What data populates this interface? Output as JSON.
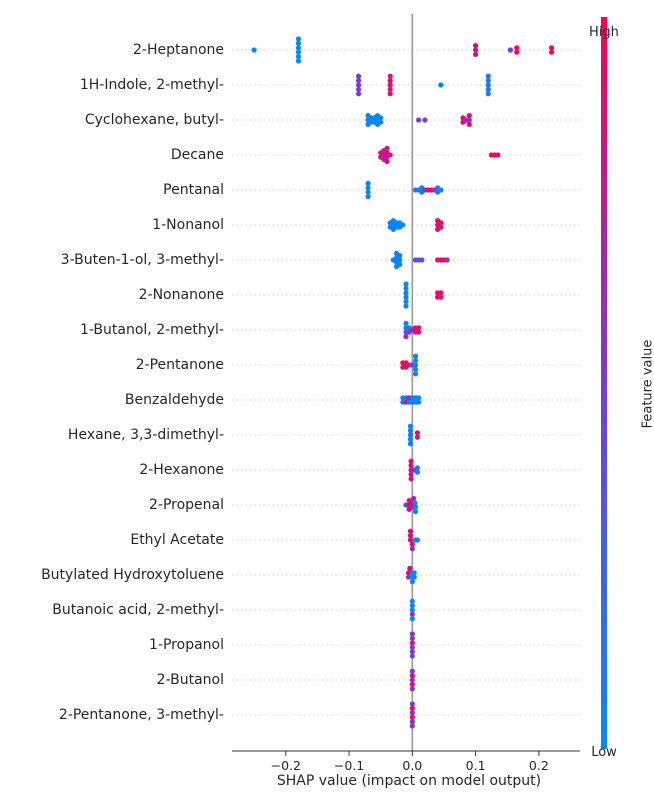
{
  "chart_data": {
    "type": "scatter",
    "subtype": "shap-beeswarm",
    "xlabel": "SHAP value (impact on model output)",
    "xlim": [
      -0.285,
      0.265
    ],
    "xticks": [
      -0.2,
      -0.1,
      0.0,
      0.1,
      0.2
    ],
    "xtick_labels": [
      "−0.2",
      "−0.1",
      "0.0",
      "0.1",
      "0.2"
    ],
    "zero_line": true,
    "grid": "dotted horizontal per feature",
    "colorbar": {
      "label": "Feature value",
      "high_label": "High",
      "low_label": "Low",
      "low_color": "#008bfb",
      "mid_color": "#7a3ad6",
      "high_color": "#ff0052"
    },
    "features": [
      {
        "name": "2-Heptanone",
        "points": [
          [
            -0.25,
            0.0
          ],
          [
            -0.18,
            0.0
          ],
          [
            -0.18,
            0.0
          ],
          [
            -0.18,
            0.0
          ],
          [
            -0.18,
            0.0
          ],
          [
            -0.18,
            0.0
          ],
          [
            -0.18,
            0.0
          ],
          [
            0.1,
            0.9
          ],
          [
            0.1,
            0.85
          ],
          [
            0.1,
            0.9
          ],
          [
            0.155,
            0.5
          ],
          [
            0.165,
            1.0
          ],
          [
            0.165,
            0.95
          ],
          [
            0.22,
            1.0
          ],
          [
            0.22,
            1.0
          ]
        ]
      },
      {
        "name": "1H-Indole, 2-methyl-",
        "points": [
          [
            -0.085,
            0.5
          ],
          [
            -0.085,
            0.5
          ],
          [
            -0.085,
            0.5
          ],
          [
            -0.085,
            0.5
          ],
          [
            -0.085,
            0.5
          ],
          [
            -0.035,
            0.9
          ],
          [
            -0.035,
            0.9
          ],
          [
            -0.035,
            0.9
          ],
          [
            -0.035,
            0.9
          ],
          [
            -0.035,
            0.9
          ],
          [
            0.045,
            0.05
          ],
          [
            0.12,
            0.1
          ],
          [
            0.12,
            0.1
          ],
          [
            0.12,
            0.1
          ],
          [
            0.12,
            0.1
          ],
          [
            0.12,
            0.1
          ]
        ]
      },
      {
        "name": "Cyclohexane, butyl-",
        "points": [
          [
            -0.07,
            0.05
          ],
          [
            -0.07,
            0.05
          ],
          [
            -0.07,
            0.05
          ],
          [
            -0.065,
            0.05
          ],
          [
            -0.065,
            0.05
          ],
          [
            -0.06,
            0.05
          ],
          [
            -0.06,
            0.05
          ],
          [
            -0.055,
            0.05
          ],
          [
            -0.055,
            0.05
          ],
          [
            -0.055,
            0.05
          ],
          [
            -0.05,
            0.05
          ],
          [
            -0.05,
            0.05
          ],
          [
            0.01,
            0.5
          ],
          [
            0.02,
            0.45
          ],
          [
            0.08,
            0.95
          ],
          [
            0.08,
            0.95
          ],
          [
            0.085,
            0.5
          ],
          [
            0.09,
            0.95
          ],
          [
            0.09,
            0.6
          ],
          [
            0.09,
            0.95
          ]
        ]
      },
      {
        "name": "Decane",
        "points": [
          [
            -0.05,
            0.8
          ],
          [
            -0.05,
            0.75
          ],
          [
            -0.045,
            0.8
          ],
          [
            -0.045,
            0.85
          ],
          [
            -0.045,
            0.7
          ],
          [
            -0.04,
            0.8
          ],
          [
            -0.04,
            0.85
          ],
          [
            -0.04,
            0.75
          ],
          [
            -0.04,
            0.8
          ],
          [
            -0.035,
            0.75
          ],
          [
            0.125,
            1.0
          ],
          [
            0.13,
            1.0
          ],
          [
            0.135,
            0.95
          ]
        ]
      },
      {
        "name": "Pentanal",
        "points": [
          [
            -0.07,
            0.05
          ],
          [
            -0.07,
            0.05
          ],
          [
            -0.07,
            0.05
          ],
          [
            -0.07,
            0.05
          ],
          [
            0.005,
            0.1
          ],
          [
            0.01,
            0.1
          ],
          [
            0.015,
            0.1
          ],
          [
            0.015,
            0.1
          ],
          [
            0.02,
            0.5
          ],
          [
            0.025,
            1.0
          ],
          [
            0.03,
            0.9
          ],
          [
            0.035,
            0.6
          ],
          [
            0.04,
            0.1
          ],
          [
            0.04,
            0.1
          ],
          [
            0.045,
            0.1
          ]
        ]
      },
      {
        "name": "1-Nonanol",
        "points": [
          [
            -0.035,
            0.05
          ],
          [
            -0.035,
            0.05
          ],
          [
            -0.03,
            0.05
          ],
          [
            -0.03,
            0.05
          ],
          [
            -0.03,
            0.05
          ],
          [
            -0.025,
            0.05
          ],
          [
            -0.025,
            0.05
          ],
          [
            -0.02,
            0.05
          ],
          [
            -0.02,
            0.05
          ],
          [
            -0.015,
            0.05
          ],
          [
            0.04,
            0.9
          ],
          [
            0.04,
            0.95
          ],
          [
            0.04,
            0.9
          ],
          [
            0.045,
            0.95
          ],
          [
            0.045,
            0.85
          ]
        ]
      },
      {
        "name": "3-Buten-1-ol, 3-methyl-",
        "points": [
          [
            -0.03,
            0.05
          ],
          [
            -0.025,
            0.05
          ],
          [
            -0.025,
            0.05
          ],
          [
            -0.025,
            0.05
          ],
          [
            -0.025,
            0.05
          ],
          [
            -0.02,
            0.05
          ],
          [
            -0.02,
            0.05
          ],
          [
            -0.02,
            0.05
          ],
          [
            0.005,
            0.45
          ],
          [
            0.01,
            0.4
          ],
          [
            0.015,
            0.4
          ],
          [
            0.04,
            0.95
          ],
          [
            0.045,
            0.95
          ],
          [
            0.05,
            0.9
          ],
          [
            0.055,
            0.55
          ]
        ]
      },
      {
        "name": "2-Nonanone",
        "points": [
          [
            -0.01,
            0.05
          ],
          [
            -0.01,
            0.05
          ],
          [
            -0.01,
            0.05
          ],
          [
            -0.01,
            0.05
          ],
          [
            -0.01,
            0.05
          ],
          [
            -0.01,
            0.05
          ],
          [
            0.04,
            0.95
          ],
          [
            0.04,
            0.95
          ],
          [
            0.045,
            0.95
          ],
          [
            0.045,
            0.9
          ]
        ]
      },
      {
        "name": "1-Butanol, 2-methyl-",
        "points": [
          [
            -0.01,
            0.05
          ],
          [
            -0.01,
            0.05
          ],
          [
            -0.01,
            0.4
          ],
          [
            -0.01,
            0.6
          ],
          [
            -0.005,
            0.05
          ],
          [
            -0.005,
            0.5
          ],
          [
            0.0,
            0.6
          ],
          [
            0.005,
            0.9
          ],
          [
            0.005,
            0.85
          ],
          [
            0.01,
            0.95
          ],
          [
            0.01,
            0.9
          ]
        ]
      },
      {
        "name": "2-Pentanone",
        "points": [
          [
            -0.015,
            0.95
          ],
          [
            -0.015,
            0.9
          ],
          [
            -0.01,
            0.95
          ],
          [
            -0.01,
            0.85
          ],
          [
            -0.005,
            0.8
          ],
          [
            0.0,
            0.5
          ],
          [
            0.005,
            0.05
          ],
          [
            0.005,
            0.05
          ],
          [
            0.005,
            0.05
          ],
          [
            0.005,
            0.05
          ],
          [
            0.005,
            0.1
          ]
        ]
      },
      {
        "name": "Benzaldehyde",
        "points": [
          [
            -0.015,
            0.05
          ],
          [
            -0.015,
            0.05
          ],
          [
            -0.01,
            0.05
          ],
          [
            -0.01,
            0.8
          ],
          [
            -0.005,
            0.9
          ],
          [
            -0.005,
            0.05
          ],
          [
            0.0,
            0.05
          ],
          [
            0.0,
            0.05
          ],
          [
            0.005,
            0.05
          ],
          [
            0.005,
            0.05
          ],
          [
            0.01,
            0.05
          ],
          [
            0.01,
            0.05
          ]
        ]
      },
      {
        "name": "Hexane, 3,3-dimethyl-",
        "points": [
          [
            -0.003,
            0.05
          ],
          [
            -0.003,
            0.05
          ],
          [
            -0.003,
            0.05
          ],
          [
            -0.003,
            0.05
          ],
          [
            -0.003,
            0.05
          ],
          [
            0.008,
            0.95
          ],
          [
            0.008,
            0.9
          ]
        ]
      },
      {
        "name": "2-Hexanone",
        "points": [
          [
            -0.002,
            0.9
          ],
          [
            -0.002,
            0.85
          ],
          [
            -0.002,
            0.8
          ],
          [
            -0.002,
            0.75
          ],
          [
            -0.002,
            0.8
          ],
          [
            0.002,
            0.6
          ],
          [
            0.008,
            0.05
          ],
          [
            0.008,
            0.05
          ]
        ]
      },
      {
        "name": "2-Propenal",
        "points": [
          [
            -0.01,
            0.3
          ],
          [
            -0.005,
            0.9
          ],
          [
            -0.005,
            0.95
          ],
          [
            -0.005,
            0.85
          ],
          [
            0.0,
            0.85
          ],
          [
            0.0,
            0.7
          ],
          [
            0.002,
            0.6
          ],
          [
            0.004,
            0.1
          ],
          [
            0.005,
            0.05
          ],
          [
            0.005,
            0.05
          ]
        ]
      },
      {
        "name": "Ethyl Acetate",
        "points": [
          [
            -0.003,
            0.85
          ],
          [
            -0.003,
            0.9
          ],
          [
            -0.003,
            0.8
          ],
          [
            0.0,
            0.85
          ],
          [
            0.0,
            0.7
          ],
          [
            0.005,
            0.05
          ],
          [
            0.008,
            0.05
          ]
        ]
      },
      {
        "name": "Butylated Hydroxytoluene",
        "points": [
          [
            -0.006,
            0.9
          ],
          [
            -0.006,
            0.5
          ],
          [
            -0.004,
            0.95
          ],
          [
            0.0,
            0.1
          ],
          [
            0.0,
            0.05
          ],
          [
            0.0,
            0.05
          ],
          [
            0.003,
            0.05
          ],
          [
            0.003,
            0.05
          ]
        ]
      },
      {
        "name": "Butanoic acid, 2-methyl-",
        "points": [
          [
            0.0,
            0.05
          ],
          [
            0.0,
            0.1
          ],
          [
            0.0,
            0.05
          ],
          [
            0.0,
            0.6
          ],
          [
            0.0,
            0.05
          ]
        ]
      },
      {
        "name": "1-Propanol",
        "points": [
          [
            0.0,
            0.6
          ],
          [
            0.0,
            0.5
          ],
          [
            0.0,
            0.95
          ],
          [
            0.0,
            0.55
          ],
          [
            0.0,
            0.5
          ],
          [
            0.0,
            0.45
          ]
        ]
      },
      {
        "name": "2-Butanol",
        "points": [
          [
            0.0,
            0.5
          ],
          [
            0.0,
            0.9
          ],
          [
            0.0,
            0.6
          ],
          [
            0.0,
            0.95
          ],
          [
            0.0,
            0.5
          ]
        ]
      },
      {
        "name": "2-Pentanone, 3-methyl-",
        "points": [
          [
            0.0,
            0.5
          ],
          [
            0.0,
            0.9
          ],
          [
            0.0,
            0.6
          ],
          [
            0.0,
            0.95
          ],
          [
            0.0,
            0.5
          ],
          [
            0.0,
            0.55
          ]
        ]
      }
    ]
  }
}
